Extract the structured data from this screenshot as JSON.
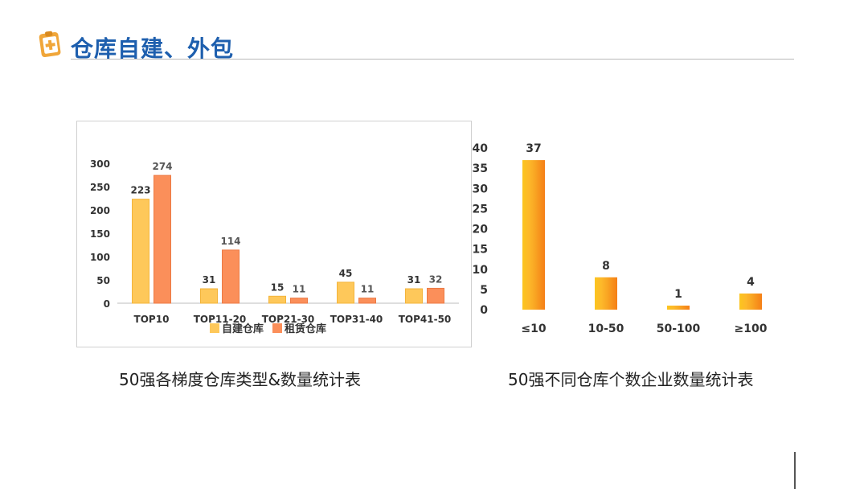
{
  "header": {
    "title": "仓库自建、外包",
    "icon": "clipboard-medical-icon",
    "accent_color": "#1e5fae",
    "icon_color": "#f0a63a"
  },
  "colors": {
    "self_built": "#fec85a",
    "leased": "#fb8f5a",
    "gradient_light": "#fcc51f",
    "gradient_dark": "#f57f17"
  },
  "captions": {
    "left": "50强各梯度仓库类型&数量统计表",
    "right": "50强不同仓库个数企业数量统计表"
  },
  "chart_data": [
    {
      "type": "bar",
      "categories": [
        "TOP10",
        "TOP11-20",
        "TOP21-30",
        "TOP31-40",
        "TOP41-50"
      ],
      "series": [
        {
          "name": "自建仓库",
          "values": [
            223,
            31,
            15,
            45,
            31
          ]
        },
        {
          "name": "租赁仓库",
          "values": [
            274,
            114,
            11,
            11,
            32
          ]
        }
      ],
      "yticks": [
        0,
        50,
        100,
        150,
        200,
        250,
        300
      ],
      "ylim": [
        0,
        300
      ],
      "legend": "bottom-center",
      "grid": false
    },
    {
      "type": "bar",
      "categories": [
        "≤10",
        "10-50",
        "50-100",
        "≥100"
      ],
      "values": [
        37,
        8,
        1,
        4
      ],
      "yticks": [
        0,
        5,
        10,
        15,
        20,
        25,
        30,
        35,
        40
      ],
      "ylim": [
        0,
        40
      ],
      "grid": false
    }
  ]
}
